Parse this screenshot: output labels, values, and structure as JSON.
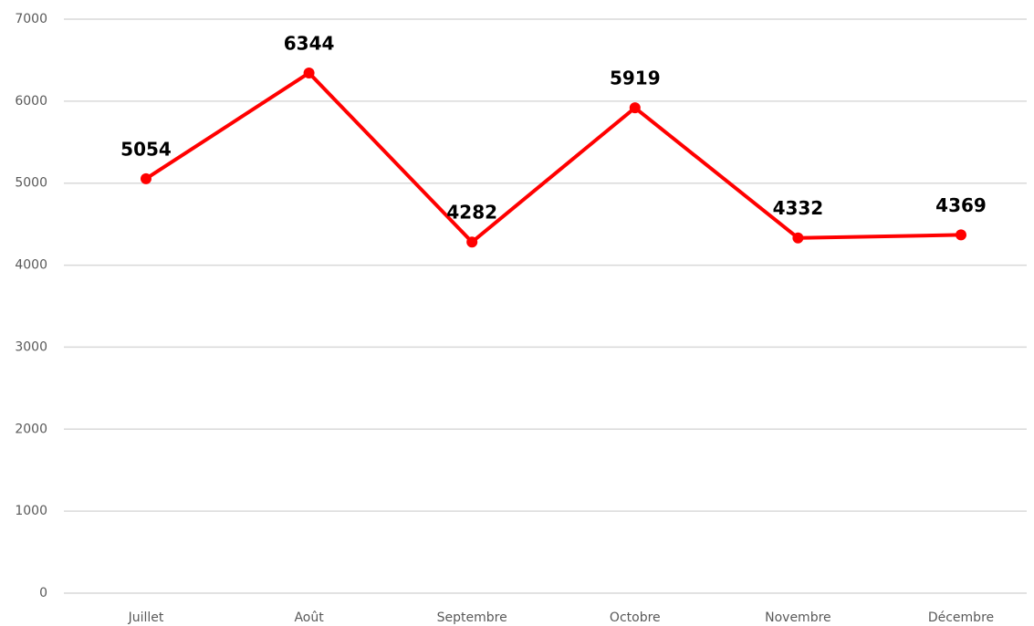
{
  "chart_data": {
    "type": "line",
    "categories": [
      "Juillet",
      "Août",
      "Septembre",
      "Octobre",
      "Novembre",
      "Décembre"
    ],
    "values": [
      5054,
      6344,
      4282,
      5919,
      4332,
      4369
    ],
    "color": "#ff0000",
    "ylim": [
      0,
      7000
    ],
    "yticks": [
      0,
      1000,
      2000,
      3000,
      4000,
      5000,
      6000,
      7000
    ],
    "grid": true,
    "data_labels": true
  }
}
